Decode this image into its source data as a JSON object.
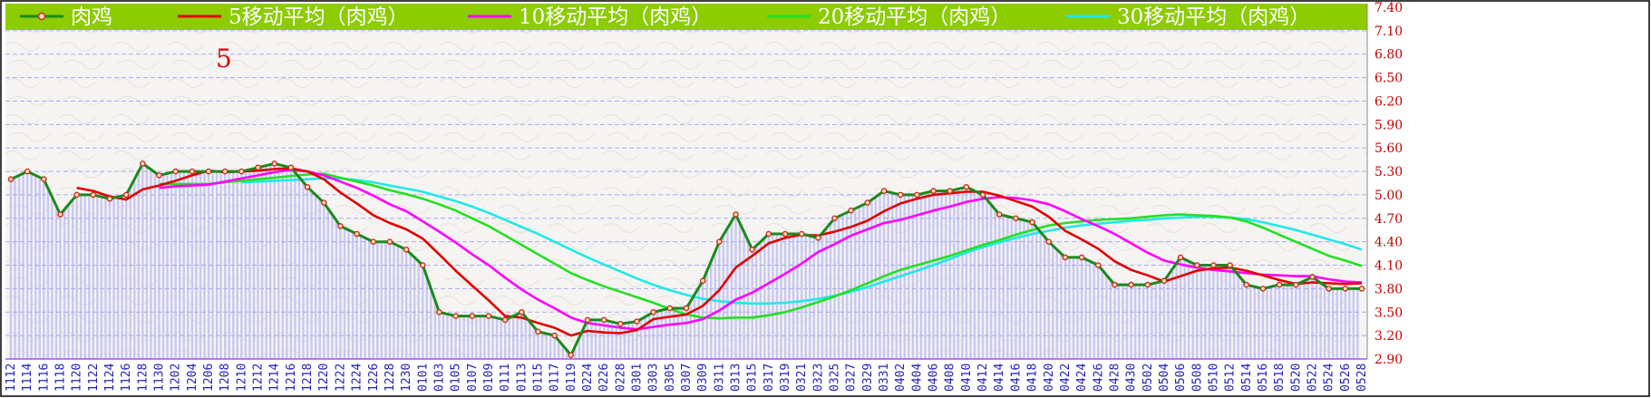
{
  "chart_data": {
    "type": "line",
    "annotation": "5",
    "ylim": [
      2.9,
      7.4
    ],
    "yticks": [
      "7.40",
      "7.10",
      "6.80",
      "6.50",
      "6.20",
      "5.90",
      "5.60",
      "5.30",
      "5.00",
      "4.70",
      "4.40",
      "4.10",
      "3.80",
      "3.50",
      "3.20",
      "2.90"
    ],
    "x": [
      "1112",
      "1114",
      "1116",
      "1118",
      "1120",
      "1122",
      "1124",
      "1126",
      "1128",
      "1130",
      "1202",
      "1204",
      "1206",
      "1208",
      "1210",
      "1212",
      "1214",
      "1216",
      "1218",
      "1220",
      "1222",
      "1224",
      "1226",
      "1228",
      "1230",
      "0101",
      "0103",
      "0105",
      "0107",
      "0109",
      "0111",
      "0113",
      "0115",
      "0117",
      "0119",
      "0224",
      "0226",
      "0228",
      "0301",
      "0303",
      "0305",
      "0307",
      "0309",
      "0311",
      "0313",
      "0315",
      "0317",
      "0319",
      "0321",
      "0323",
      "0325",
      "0327",
      "0329",
      "0331",
      "0402",
      "0404",
      "0406",
      "0408",
      "0410",
      "0412",
      "0414",
      "0416",
      "0418",
      "0420",
      "0422",
      "0424",
      "0426",
      "0428",
      "0430",
      "0502",
      "0504",
      "0506",
      "0508",
      "0510",
      "0512",
      "0514",
      "0516",
      "0518",
      "0520",
      "0522",
      "0524",
      "0526",
      "0528"
    ],
    "colors": {
      "legend_bg": "#8ccc00",
      "price": "#1a8a1a",
      "marker": "#c0302a",
      "ma5": "#e00000",
      "ma10": "#ff00ff",
      "ma20": "#22e022",
      "ma30": "#22e8e8",
      "volume_bar": "#c8c8f0",
      "grid": "#aaaaee",
      "axis_text": "#c00000",
      "date_text": "#1f1fb4"
    },
    "series": [
      {
        "name": "肉鸡",
        "key": "price",
        "values": [
          5.2,
          5.3,
          5.2,
          4.75,
          5.0,
          5.0,
          4.95,
          5.0,
          5.4,
          5.25,
          5.3,
          5.3,
          5.3,
          5.3,
          5.3,
          5.35,
          5.4,
          5.35,
          5.1,
          4.9,
          4.6,
          4.5,
          4.4,
          4.4,
          4.3,
          4.1,
          3.5,
          3.45,
          3.45,
          3.45,
          3.4,
          3.5,
          3.25,
          3.2,
          2.95,
          3.4,
          3.4,
          3.35,
          3.38,
          3.5,
          3.55,
          3.55,
          3.9,
          4.4,
          4.75,
          4.3,
          4.5,
          4.5,
          4.5,
          4.45,
          4.7,
          4.8,
          4.9,
          5.05,
          5.0,
          5.0,
          5.05,
          5.05,
          5.1,
          5.0,
          4.75,
          4.7,
          4.65,
          4.4,
          4.2,
          4.2,
          4.1,
          3.85,
          3.85,
          3.85,
          3.9,
          4.2,
          4.1,
          4.1,
          4.1,
          3.85,
          3.8,
          3.85,
          3.85,
          3.95,
          3.8,
          3.8,
          3.8
        ]
      },
      {
        "name": "5移动平均（肉鸡）",
        "key": "ma5",
        "values": [
          null,
          null,
          null,
          null,
          5.09,
          5.05,
          4.98,
          4.94,
          5.07,
          5.12,
          5.18,
          5.25,
          5.31,
          5.29,
          5.3,
          5.31,
          5.33,
          5.34,
          5.3,
          5.2,
          5.03,
          4.89,
          4.74,
          4.64,
          4.56,
          4.44,
          4.24,
          4.03,
          3.84,
          3.65,
          3.45,
          3.43,
          3.36,
          3.3,
          3.2,
          3.26,
          3.24,
          3.23,
          3.27,
          3.41,
          3.44,
          3.47,
          3.58,
          3.78,
          4.07,
          4.22,
          4.38,
          4.45,
          4.49,
          4.48,
          4.53,
          4.59,
          4.67,
          4.79,
          4.89,
          4.95,
          5.0,
          5.02,
          5.04,
          5.04,
          4.99,
          4.92,
          4.85,
          4.72,
          4.54,
          4.43,
          4.31,
          4.15,
          4.04,
          3.97,
          3.89,
          3.96,
          4.03,
          4.06,
          4.07,
          4.03,
          3.97,
          3.91,
          3.86,
          3.88,
          3.87,
          3.86,
          3.87
        ]
      },
      {
        "name": "10移动平均（肉鸡）",
        "key": "ma10",
        "values": [
          null,
          null,
          null,
          null,
          null,
          null,
          null,
          null,
          null,
          5.09,
          5.11,
          5.12,
          5.13,
          5.17,
          5.21,
          5.25,
          5.29,
          5.32,
          5.3,
          5.25,
          5.17,
          5.09,
          4.99,
          4.88,
          4.79,
          4.66,
          4.53,
          4.39,
          4.24,
          4.1,
          3.94,
          3.79,
          3.66,
          3.55,
          3.43,
          3.36,
          3.33,
          3.3,
          3.28,
          3.31,
          3.34,
          3.36,
          3.41,
          3.52,
          3.66,
          3.75,
          3.87,
          3.99,
          4.12,
          4.27,
          4.37,
          4.48,
          4.56,
          4.64,
          4.68,
          4.74,
          4.8,
          4.85,
          4.91,
          4.95,
          4.97,
          4.96,
          4.93,
          4.88,
          4.79,
          4.69,
          4.6,
          4.5,
          4.38,
          4.26,
          4.16,
          4.11,
          4.07,
          4.04,
          4.02,
          4.0,
          3.98,
          3.97,
          3.96,
          3.96,
          3.92,
          3.89,
          3.88
        ]
      },
      {
        "name": "20移动平均（肉鸡）",
        "key": "ma20",
        "values": [
          null,
          null,
          null,
          null,
          null,
          null,
          null,
          null,
          null,
          5.14,
          5.14,
          5.14,
          5.14,
          5.16,
          5.18,
          5.2,
          5.22,
          5.24,
          5.26,
          5.27,
          5.22,
          5.17,
          5.12,
          5.06,
          5.01,
          4.95,
          4.88,
          4.8,
          4.7,
          4.6,
          4.48,
          4.36,
          4.24,
          4.12,
          4.0,
          3.91,
          3.83,
          3.76,
          3.69,
          3.62,
          3.54,
          3.47,
          3.43,
          3.42,
          3.43,
          3.43,
          3.46,
          3.5,
          3.56,
          3.63,
          3.7,
          3.78,
          3.87,
          3.96,
          4.04,
          4.1,
          4.16,
          4.22,
          4.29,
          4.36,
          4.42,
          4.49,
          4.55,
          4.61,
          4.64,
          4.66,
          4.68,
          4.69,
          4.7,
          4.72,
          4.74,
          4.75,
          4.74,
          4.73,
          4.71,
          4.66,
          4.58,
          4.49,
          4.4,
          4.31,
          4.22,
          4.16,
          4.09
        ]
      },
      {
        "name": "30移动平均（肉鸡）",
        "key": "ma30",
        "values": [
          null,
          null,
          null,
          null,
          null,
          null,
          null,
          null,
          null,
          null,
          null,
          null,
          null,
          null,
          5.16,
          5.17,
          5.18,
          5.19,
          5.2,
          5.21,
          5.21,
          5.19,
          5.16,
          5.12,
          5.08,
          5.04,
          4.98,
          4.92,
          4.85,
          4.77,
          4.68,
          4.59,
          4.5,
          4.4,
          4.3,
          4.2,
          4.11,
          4.02,
          3.93,
          3.85,
          3.78,
          3.72,
          3.67,
          3.64,
          3.62,
          3.61,
          3.61,
          3.62,
          3.64,
          3.67,
          3.71,
          3.76,
          3.82,
          3.89,
          3.96,
          4.03,
          4.1,
          4.18,
          4.26,
          4.33,
          4.39,
          4.45,
          4.5,
          4.54,
          4.58,
          4.61,
          4.63,
          4.65,
          4.67,
          4.68,
          4.7,
          4.71,
          4.72,
          4.72,
          4.71,
          4.69,
          4.65,
          4.6,
          4.55,
          4.49,
          4.43,
          4.37,
          4.3
        ]
      }
    ]
  }
}
